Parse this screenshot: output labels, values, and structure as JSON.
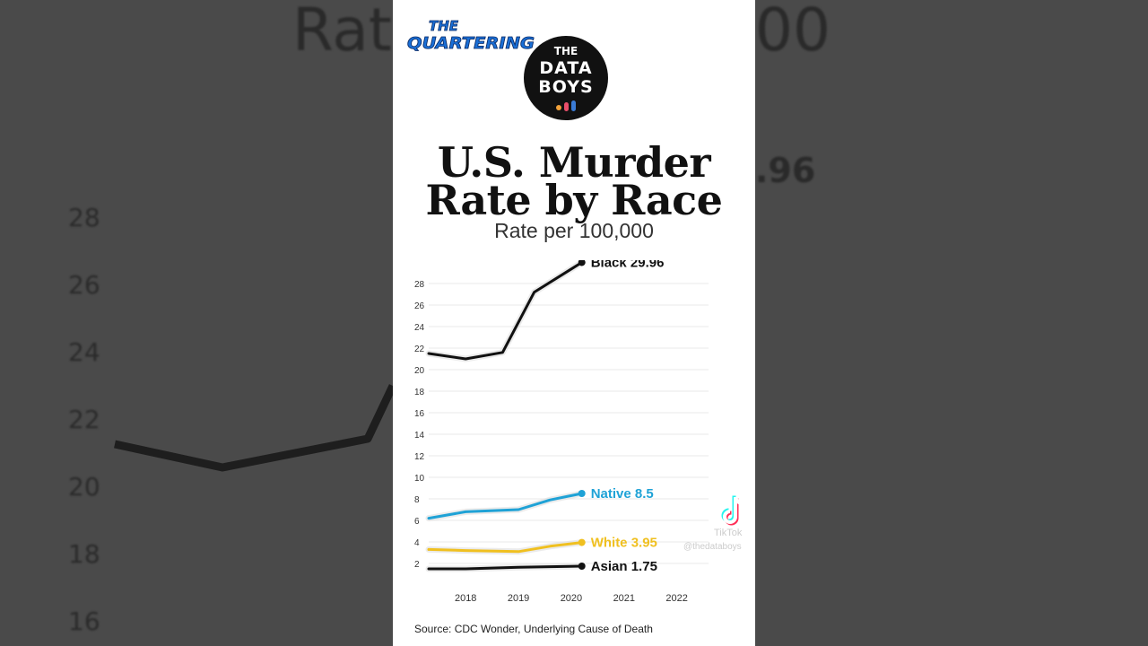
{
  "branding": {
    "channel_logo_line1": "THE",
    "channel_logo_line2": "QUARTERING",
    "data_logo_line1": "THE",
    "data_logo_line2": "DATA",
    "data_logo_line3": "BOYS",
    "tiktok_label": "TikTok",
    "tiktok_handle": "@thedataboys"
  },
  "colors": {
    "black_series": "#111111",
    "native_series": "#1fa2d6",
    "white_series": "#f0c020",
    "asian_series": "#111111",
    "grid": "#e8e8e8",
    "tick": "#333333"
  },
  "backdrop": {
    "title_fragment": "Rate",
    "number_fragment_1": "00",
    "value_fragment": ".96",
    "y_ticks": [
      "28",
      "26",
      "24",
      "22",
      "20",
      "18",
      "16"
    ]
  },
  "chart_data": {
    "type": "line",
    "title": "U.S. Murder Rate by Race",
    "subtitle": "Rate per 100,000",
    "x_ticks": [
      "2018",
      "2019",
      "2020",
      "2021",
      "2022"
    ],
    "y_ticks": [
      2,
      4,
      6,
      8,
      10,
      12,
      14,
      16,
      18,
      20,
      22,
      24,
      26,
      28
    ],
    "xlim": [
      2017.3,
      2022.6
    ],
    "ylim": [
      0.5,
      29.5
    ],
    "grid": true,
    "legend": "end-of-line labels",
    "series": [
      {
        "name": "Black",
        "label": "Black 29.96",
        "color": "#111111",
        "points": [
          [
            2017.3,
            21.5
          ],
          [
            2018.0,
            21.0
          ],
          [
            2018.7,
            21.6
          ],
          [
            2019.3,
            27.2
          ],
          [
            2020.2,
            29.96
          ]
        ]
      },
      {
        "name": "Native",
        "label": "Native 8.5",
        "color": "#1fa2d6",
        "points": [
          [
            2017.3,
            6.2
          ],
          [
            2018.0,
            6.8
          ],
          [
            2019.0,
            7.0
          ],
          [
            2019.6,
            7.9
          ],
          [
            2020.2,
            8.5
          ]
        ]
      },
      {
        "name": "White",
        "label": "White 3.95",
        "color": "#f0c020",
        "points": [
          [
            2017.3,
            3.3
          ],
          [
            2018.0,
            3.2
          ],
          [
            2019.0,
            3.1
          ],
          [
            2019.6,
            3.6
          ],
          [
            2020.2,
            3.95
          ]
        ]
      },
      {
        "name": "Asian",
        "label": "Asian 1.75",
        "color": "#111111",
        "points": [
          [
            2017.3,
            1.5
          ],
          [
            2018.0,
            1.5
          ],
          [
            2019.0,
            1.65
          ],
          [
            2019.6,
            1.7
          ],
          [
            2020.2,
            1.75
          ]
        ]
      }
    ]
  },
  "source": "Source: CDC Wonder, Underlying Cause of Death"
}
